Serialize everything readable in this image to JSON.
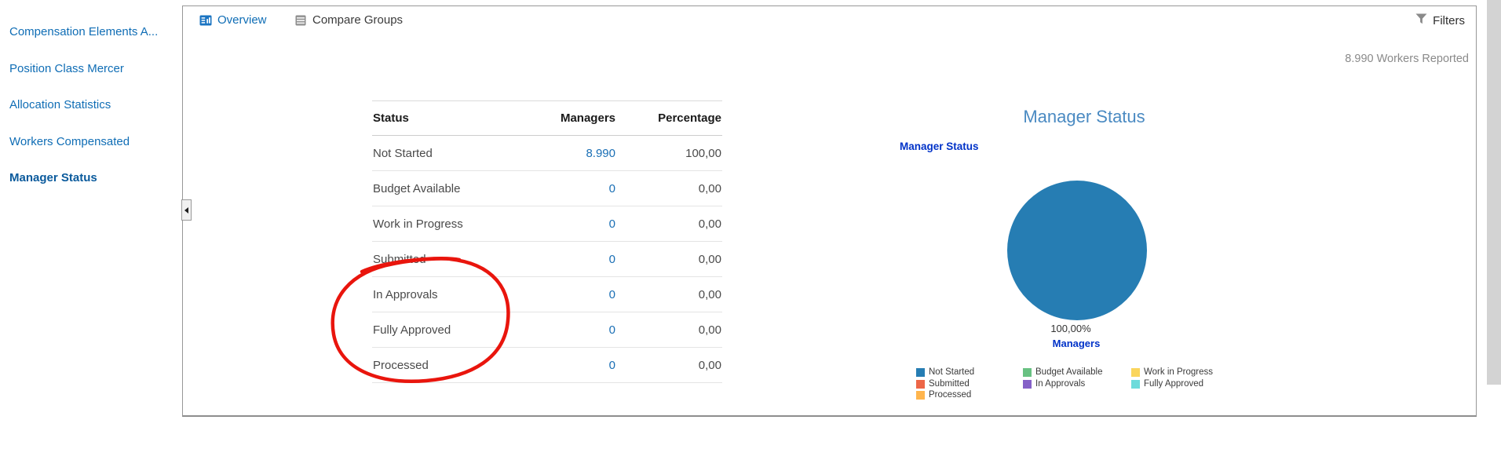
{
  "sidebar": {
    "items": [
      {
        "label": "Compensation Elements A...",
        "active": false
      },
      {
        "label": "Position Class Mercer",
        "active": false
      },
      {
        "label": "Allocation Statistics",
        "active": false
      },
      {
        "label": "Workers Compensated",
        "active": false
      },
      {
        "label": "Manager Status",
        "active": true
      }
    ]
  },
  "main": {
    "tabs": [
      {
        "label": "Overview",
        "selected": true,
        "icon": "report-icon"
      },
      {
        "label": "Compare Groups",
        "selected": false,
        "icon": "list-icon"
      }
    ],
    "filters_label": "Filters",
    "filters_icon": "funnel-icon",
    "workers_reported": "8.990 Workers Reported"
  },
  "table": {
    "headers": [
      "Status",
      "Managers",
      "Percentage"
    ],
    "rows": [
      {
        "status": "Not Started",
        "managers": "8.990",
        "percentage": "100,00"
      },
      {
        "status": "Budget Available",
        "managers": "0",
        "percentage": "0,00"
      },
      {
        "status": "Work in Progress",
        "managers": "0",
        "percentage": "0,00"
      },
      {
        "status": "Submitted",
        "managers": "0",
        "percentage": "0,00"
      },
      {
        "status": "In Approvals",
        "managers": "0",
        "percentage": "0,00"
      },
      {
        "status": "Fully Approved",
        "managers": "0",
        "percentage": "0,00"
      },
      {
        "status": "Processed",
        "managers": "0",
        "percentage": "0,00"
      }
    ]
  },
  "chart_data": {
    "type": "pie",
    "title": "Manager Status",
    "inner_title": "Manager Status",
    "footer_label": "Managers",
    "slice_label": "100,00%",
    "categories": [
      "Not Started",
      "Budget Available",
      "Work in Progress",
      "Submitted",
      "In Approvals",
      "Fully Approved",
      "Processed"
    ],
    "values": [
      100.0,
      0,
      0,
      0,
      0,
      0,
      0
    ],
    "managers_counts": [
      8990,
      0,
      0,
      0,
      0,
      0,
      0
    ],
    "colors": [
      "#267db3",
      "#68c182",
      "#fad55c",
      "#ed6647",
      "#8561c8",
      "#6ddbdb",
      "#ffb54d"
    ],
    "legend_position": "bottom",
    "legend_columns": 3
  },
  "annotation": {
    "shape": "hand-drawn-ellipse",
    "color": "#e9150d",
    "circled_rows": [
      "In Approvals",
      "Fully Approved",
      "Processed"
    ]
  }
}
